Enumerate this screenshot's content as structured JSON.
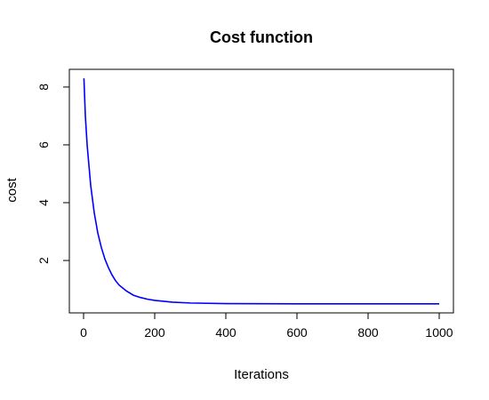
{
  "chart_data": {
    "type": "line",
    "title": "Cost function",
    "xlabel": "Iterations",
    "ylabel": "cost",
    "xlim": [
      0,
      1000
    ],
    "ylim": [
      0.5,
      8.3
    ],
    "xticks": [
      0,
      200,
      400,
      600,
      800,
      1000
    ],
    "yticks": [
      2,
      4,
      6,
      8
    ],
    "grid": false,
    "legend": "none",
    "series": [
      {
        "color": "#0000ff",
        "x": [
          1,
          5,
          10,
          20,
          30,
          40,
          50,
          60,
          70,
          80,
          90,
          100,
          120,
          140,
          160,
          180,
          200,
          250,
          300,
          400,
          500,
          600,
          700,
          800,
          900,
          1000
        ],
        "y": [
          8.3,
          7.0,
          6.0,
          4.6,
          3.65,
          2.95,
          2.45,
          2.05,
          1.75,
          1.5,
          1.3,
          1.15,
          0.95,
          0.8,
          0.72,
          0.66,
          0.62,
          0.56,
          0.53,
          0.51,
          0.505,
          0.5,
          0.5,
          0.5,
          0.5,
          0.5
        ]
      }
    ]
  }
}
